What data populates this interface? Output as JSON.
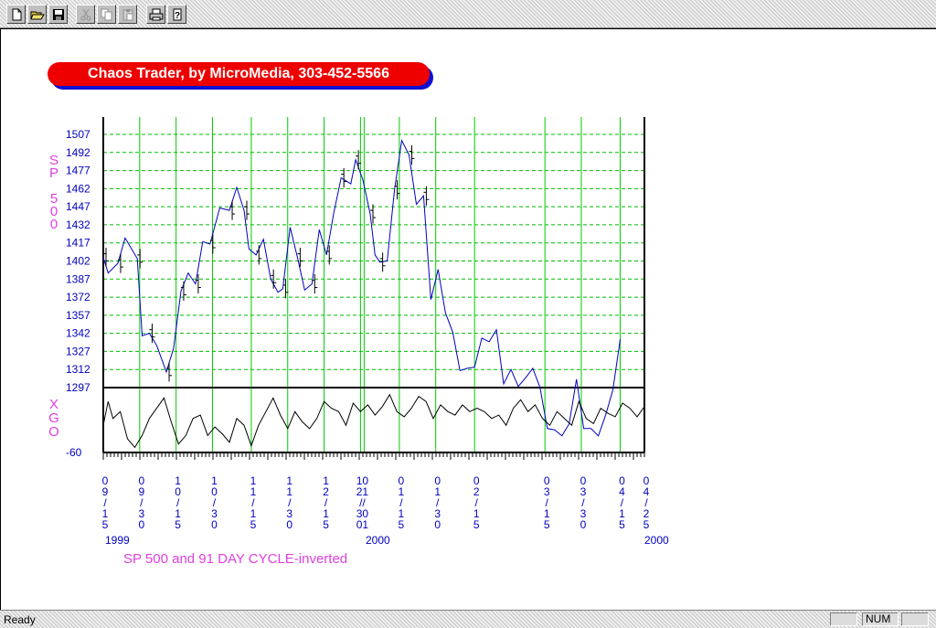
{
  "toolbar": {
    "buttons": [
      {
        "name": "new",
        "icon": "new-document-icon",
        "enabled": true
      },
      {
        "name": "open",
        "icon": "open-folder-icon",
        "enabled": true
      },
      {
        "name": "save",
        "icon": "save-disk-icon",
        "enabled": true
      },
      {
        "name": "cut",
        "icon": "scissors-icon",
        "enabled": false
      },
      {
        "name": "copy",
        "icon": "copy-icon",
        "enabled": false
      },
      {
        "name": "paste",
        "icon": "paste-icon",
        "enabled": false
      },
      {
        "name": "print",
        "icon": "printer-icon",
        "enabled": true
      },
      {
        "name": "help",
        "icon": "help-question-icon",
        "enabled": true
      }
    ]
  },
  "banner": {
    "text": "Chaos Trader, by MicroMedia, 303-452-5566"
  },
  "status": {
    "text": "Ready",
    "num": "NUM"
  },
  "colors": {
    "price_line": "#0000c0",
    "cycle_line": "#000000",
    "grid_vertical": "#00cc00",
    "grid_horizontal": "#00bb00",
    "labels": "#0000c0",
    "vertical_titles": "#e040e0",
    "banner_bg": "#ee0000",
    "banner_shadow": "#1010d0"
  },
  "chart_data": {
    "type": "line",
    "caption": "SP 500 and 91 DAY CYCLE-inverted",
    "upper_panel": {
      "vertical_title": [
        "S",
        "P",
        "",
        "5",
        "0",
        "0"
      ],
      "y_ticks": [
        1507,
        1492,
        1477,
        1462,
        1447,
        1432,
        1417,
        1402,
        1387,
        1372,
        1357,
        1342,
        1327,
        1312,
        1297
      ],
      "ylim": [
        1297,
        1507
      ]
    },
    "lower_panel": {
      "vertical_title": [
        "X",
        "G",
        "O"
      ],
      "y_tick": "-60"
    },
    "x_date_labels": [
      {
        "date": "1999-09-15",
        "lines": [
          "0",
          "9",
          "/",
          "1",
          "5"
        ]
      },
      {
        "date": "1999-09-30",
        "lines": [
          "0",
          "9",
          "/",
          "3",
          "0"
        ]
      },
      {
        "date": "1999-10-15",
        "lines": [
          "1",
          "0",
          "/",
          "1",
          "5"
        ]
      },
      {
        "date": "1999-10-30",
        "lines": [
          "1",
          "0",
          "/",
          "3",
          "0"
        ]
      },
      {
        "date": "1999-11-15",
        "lines": [
          "1",
          "1",
          "/",
          "1",
          "5"
        ]
      },
      {
        "date": "1999-11-30",
        "lines": [
          "1",
          "1",
          "/",
          "3",
          "0"
        ]
      },
      {
        "date": "1999-12-15",
        "lines": [
          "1",
          "2",
          "/",
          "1",
          "5"
        ]
      },
      {
        "date": "1999-12-30",
        "lines": [
          "10",
          "21",
          "//",
          "30",
          "01"
        ]
      },
      {
        "date": "2000-01-15",
        "lines": [
          "0",
          "1",
          "/",
          "1",
          "5"
        ]
      },
      {
        "date": "2000-01-30",
        "lines": [
          "0",
          "1",
          "/",
          "3",
          "0"
        ]
      },
      {
        "date": "2000-02-15",
        "lines": [
          "0",
          "2",
          "/",
          "1",
          "5"
        ]
      },
      {
        "date": "2000-03-15",
        "lines": [
          "0",
          "3",
          "/",
          "1",
          "5"
        ]
      },
      {
        "date": "2000-03-30",
        "lines": [
          "0",
          "3",
          "/",
          "3",
          "0"
        ]
      },
      {
        "date": "2000-04-15",
        "lines": [
          "0",
          "4",
          "/",
          "1",
          "5"
        ]
      },
      {
        "date": "2000-04-25",
        "lines": [
          "0",
          "4",
          "/",
          "2",
          "5"
        ]
      }
    ],
    "year_labels": [
      "1999",
      "2000",
      "2000"
    ],
    "grid": true,
    "series": [
      {
        "role": "projected-line",
        "x": [
          "1999-09-15",
          "1999-09-17",
          "1999-09-21",
          "1999-09-24",
          "1999-09-29",
          "1999-10-01",
          "1999-10-04",
          "1999-10-07",
          "1999-10-11",
          "1999-10-14",
          "1999-10-17",
          "1999-10-20",
          "1999-10-23",
          "1999-10-26",
          "1999-10-29",
          "1999-11-02",
          "1999-11-06",
          "1999-11-09",
          "1999-11-12",
          "1999-11-14",
          "1999-11-17",
          "1999-11-20",
          "1999-11-23",
          "1999-11-26",
          "1999-11-28",
          "1999-12-01",
          "1999-12-04",
          "1999-12-07",
          "1999-12-10",
          "1999-12-13",
          "1999-12-16",
          "1999-12-19",
          "1999-12-22",
          "1999-12-26",
          "1999-12-28",
          "1999-12-31",
          "2000-01-03",
          "2000-01-05",
          "2000-01-07",
          "2000-01-10",
          "2000-01-13",
          "2000-01-16",
          "2000-01-19",
          "2000-01-22",
          "2000-01-25",
          "2000-01-28",
          "2000-01-31",
          "2000-02-03",
          "2000-02-06",
          "2000-02-09",
          "2000-02-12",
          "2000-02-15",
          "2000-02-18",
          "2000-02-21",
          "2000-02-24",
          "2000-02-27",
          "2000-03-01",
          "2000-03-04",
          "2000-03-07",
          "2000-03-10",
          "2000-03-13",
          "2000-03-16",
          "2000-03-19",
          "2000-03-22",
          "2000-03-25",
          "2000-03-28",
          "2000-03-31",
          "2000-04-03",
          "2000-04-06",
          "2000-04-09",
          "2000-04-12",
          "2000-04-15"
        ],
        "values": [
          1405,
          1392,
          1400,
          1421,
          1404,
          1340,
          1342,
          1332,
          1310,
          1330,
          1377,
          1392,
          1383,
          1418,
          1416,
          1446,
          1444,
          1463,
          1444,
          1412,
          1407,
          1420,
          1387,
          1376,
          1379,
          1430,
          1405,
          1378,
          1383,
          1428,
          1407,
          1442,
          1471,
          1466,
          1486,
          1469,
          1441,
          1407,
          1401,
          1402,
          1461,
          1502,
          1490,
          1449,
          1456,
          1370,
          1395,
          1359,
          1343,
          1311,
          1313,
          1314,
          1338,
          1335,
          1345,
          1300,
          1312,
          1298,
          1305,
          1313,
          1297,
          1263,
          1262,
          1257,
          1267,
          1304,
          1263,
          1263,
          1257,
          1274,
          1295,
          1337
        ]
      },
      {
        "role": "cycle-inverted",
        "x": [
          "1999-09-15",
          "1999-09-17",
          "1999-09-19",
          "1999-09-22",
          "1999-09-25",
          "1999-09-28",
          "1999-10-01",
          "1999-10-04",
          "1999-10-07",
          "1999-10-10",
          "1999-10-13",
          "1999-10-16",
          "1999-10-19",
          "1999-10-22",
          "1999-10-25",
          "1999-10-28",
          "1999-10-31",
          "1999-11-03",
          "1999-11-06",
          "1999-11-09",
          "1999-11-12",
          "1999-11-15",
          "1999-11-18",
          "1999-11-21",
          "1999-11-24",
          "1999-11-27",
          "1999-11-30",
          "1999-12-03",
          "1999-12-06",
          "1999-12-09",
          "1999-12-12",
          "1999-12-15",
          "1999-12-18",
          "1999-12-21",
          "1999-12-24",
          "1999-12-27",
          "1999-12-30",
          "2000-01-02",
          "2000-01-05",
          "2000-01-08",
          "2000-01-11",
          "2000-01-14",
          "2000-01-17",
          "2000-01-20",
          "2000-01-23",
          "2000-01-26",
          "2000-01-29",
          "2000-02-01",
          "2000-02-04",
          "2000-02-07",
          "2000-02-10",
          "2000-02-13",
          "2000-02-16",
          "2000-02-19",
          "2000-02-22",
          "2000-02-25",
          "2000-02-28",
          "2000-03-02",
          "2000-03-05",
          "2000-03-08",
          "2000-03-11",
          "2000-03-14",
          "2000-03-17",
          "2000-03-20",
          "2000-03-23",
          "2000-03-26",
          "2000-03-29",
          "2000-04-01",
          "2000-04-04",
          "2000-04-07",
          "2000-04-10",
          "2000-04-13",
          "2000-04-16",
          "2000-04-19",
          "2000-04-22",
          "2000-04-25"
        ],
        "values": [
          -44,
          -30,
          -40,
          -36,
          -52,
          -57,
          -50,
          -40,
          -34,
          -28,
          -42,
          -55,
          -50,
          -40,
          -38,
          -50,
          -45,
          -49,
          -54,
          -40,
          -44,
          -56,
          -44,
          -36,
          -28,
          -38,
          -46,
          -36,
          -42,
          -46,
          -40,
          -30,
          -34,
          -36,
          -44,
          -31,
          -36,
          -32,
          -38,
          -33,
          -26,
          -36,
          -39,
          -34,
          -27,
          -30,
          -40,
          -32,
          -36,
          -38,
          -32,
          -36,
          -34,
          -36,
          -40,
          -38,
          -44,
          -34,
          -29,
          -36,
          -32,
          -40,
          -44,
          -36,
          -40,
          -44,
          -30,
          -40,
          -43,
          -34,
          -37,
          -39,
          -31,
          -34,
          -39,
          -33
        ]
      }
    ]
  }
}
